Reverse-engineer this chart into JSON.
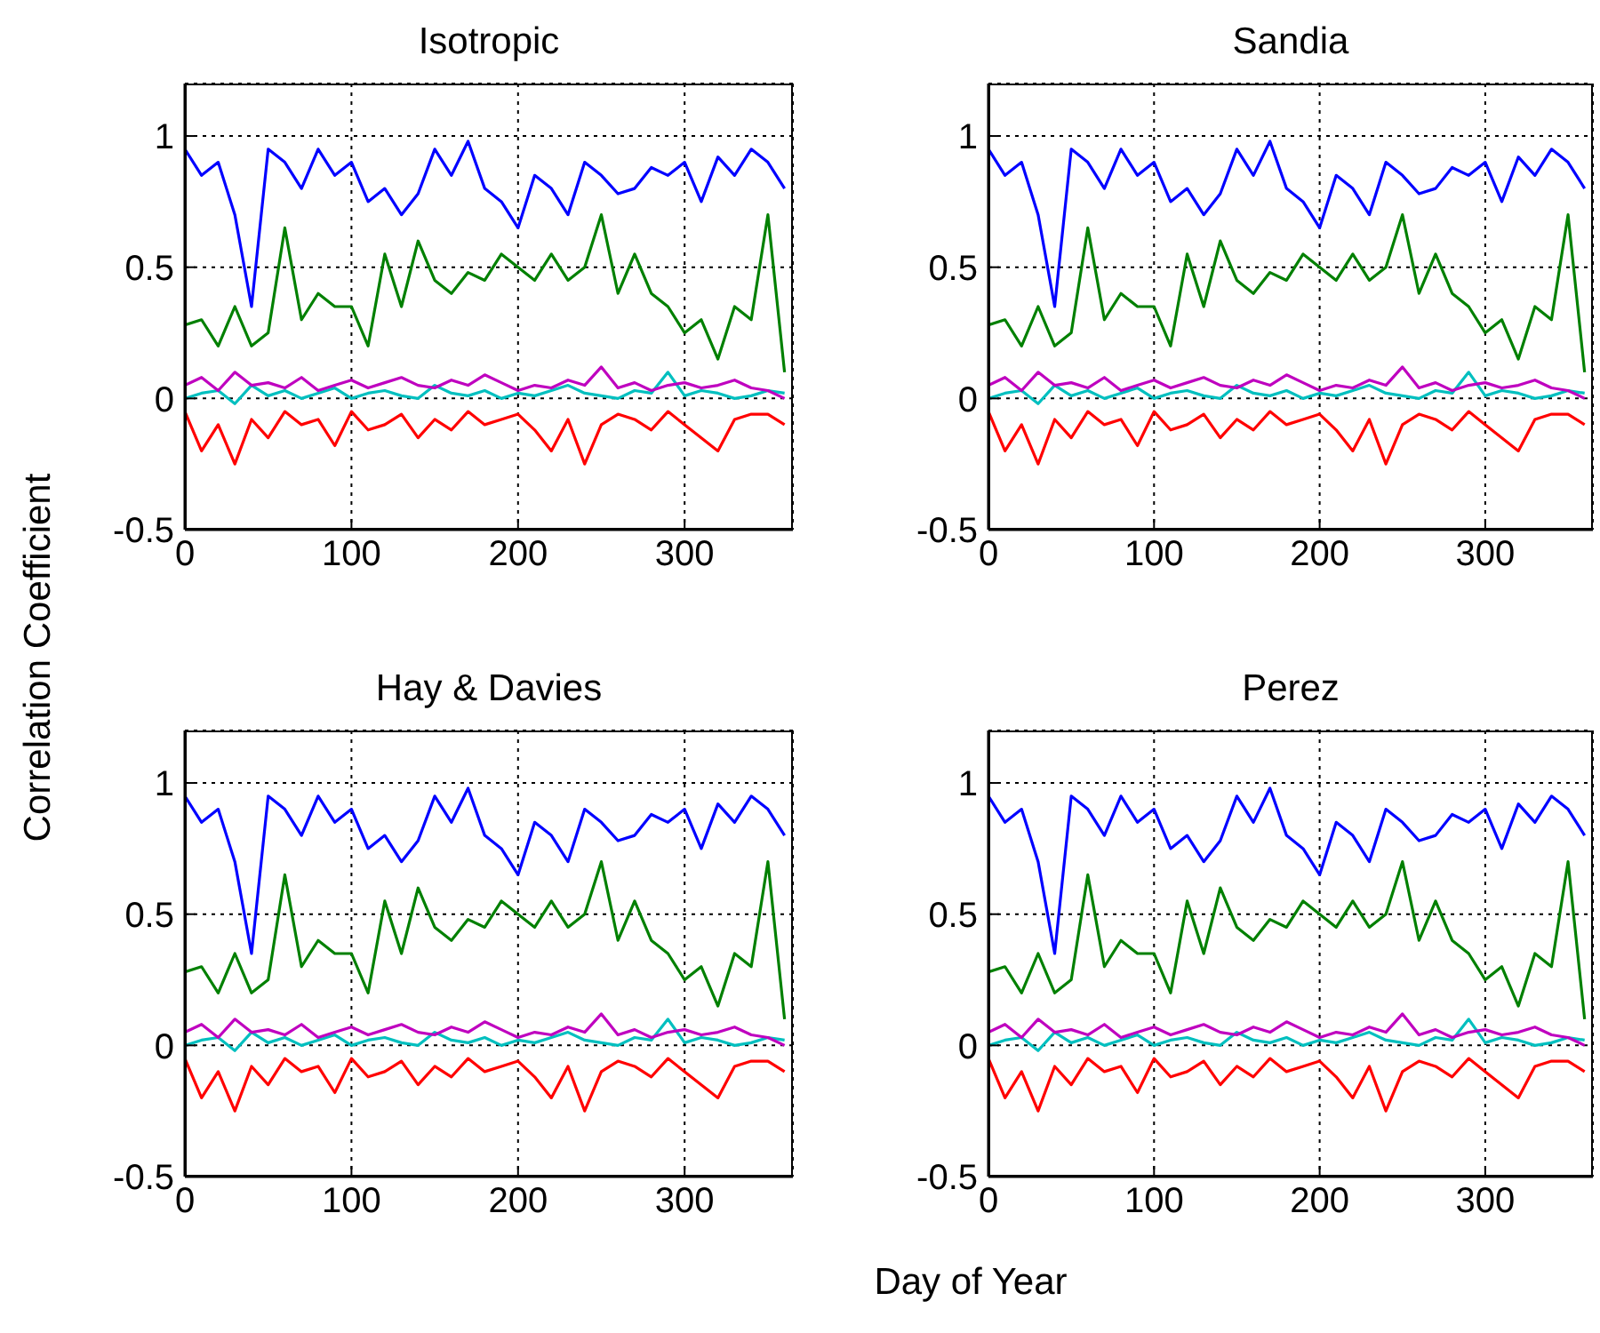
{
  "chart_data": [
    {
      "type": "line",
      "title": "Isotropic",
      "ylabel": "Correlation Coefficient",
      "x": [
        0,
        10,
        20,
        30,
        40,
        50,
        60,
        70,
        80,
        90,
        100,
        110,
        120,
        130,
        140,
        150,
        160,
        170,
        180,
        190,
        200,
        210,
        220,
        230,
        240,
        250,
        260,
        270,
        280,
        290,
        300,
        310,
        320,
        330,
        340,
        350,
        360
      ],
      "xlim": [
        0,
        365
      ],
      "xticks": [
        0,
        100,
        200,
        300
      ],
      "ylim": [
        -0.5,
        1.2
      ],
      "yticks": [
        -0.5,
        0,
        0.5,
        1
      ],
      "grid": true,
      "series": [
        {
          "color": "#0000ff",
          "values": [
            0.95,
            0.85,
            0.9,
            0.7,
            0.35,
            0.95,
            0.9,
            0.8,
            0.95,
            0.85,
            0.9,
            0.75,
            0.8,
            0.7,
            0.78,
            0.95,
            0.85,
            0.98,
            0.8,
            0.75,
            0.65,
            0.85,
            0.8,
            0.7,
            0.9,
            0.85,
            0.78,
            0.8,
            0.88,
            0.85,
            0.9,
            0.75,
            0.92,
            0.85,
            0.95,
            0.9,
            0.8
          ]
        },
        {
          "color": "#008000",
          "values": [
            0.28,
            0.3,
            0.2,
            0.35,
            0.2,
            0.25,
            0.65,
            0.3,
            0.4,
            0.35,
            0.35,
            0.2,
            0.55,
            0.35,
            0.6,
            0.45,
            0.4,
            0.48,
            0.45,
            0.55,
            0.5,
            0.45,
            0.55,
            0.45,
            0.5,
            0.7,
            0.4,
            0.55,
            0.4,
            0.35,
            0.25,
            0.3,
            0.15,
            0.35,
            0.3,
            0.7,
            0.1
          ]
        },
        {
          "color": "#00bfbf",
          "values": [
            0,
            0.02,
            0.03,
            -0.02,
            0.05,
            0.01,
            0.03,
            0,
            0.02,
            0.04,
            0,
            0.02,
            0.03,
            0.01,
            0,
            0.05,
            0.02,
            0.01,
            0.03,
            0,
            0.02,
            0.01,
            0.03,
            0.05,
            0.02,
            0.01,
            0,
            0.03,
            0.02,
            0.1,
            0.01,
            0.03,
            0.02,
            0,
            0.01,
            0.03,
            0.02
          ]
        },
        {
          "color": "#bf00bf",
          "values": [
            0.05,
            0.08,
            0.03,
            0.1,
            0.05,
            0.06,
            0.04,
            0.08,
            0.03,
            0.05,
            0.07,
            0.04,
            0.06,
            0.08,
            0.05,
            0.04,
            0.07,
            0.05,
            0.09,
            0.06,
            0.03,
            0.05,
            0.04,
            0.07,
            0.05,
            0.12,
            0.04,
            0.06,
            0.03,
            0.05,
            0.06,
            0.04,
            0.05,
            0.07,
            0.04,
            0.03,
            0
          ]
        },
        {
          "color": "#ff0000",
          "values": [
            -0.05,
            -0.2,
            -0.1,
            -0.25,
            -0.08,
            -0.15,
            -0.05,
            -0.1,
            -0.08,
            -0.18,
            -0.05,
            -0.12,
            -0.1,
            -0.06,
            -0.15,
            -0.08,
            -0.12,
            -0.05,
            -0.1,
            -0.08,
            -0.06,
            -0.12,
            -0.2,
            -0.08,
            -0.25,
            -0.1,
            -0.06,
            -0.08,
            -0.12,
            -0.05,
            -0.1,
            -0.15,
            -0.2,
            -0.08,
            -0.06,
            -0.06,
            -0.1
          ]
        }
      ]
    },
    {
      "type": "line",
      "title": "Sandia",
      "x": [
        0,
        10,
        20,
        30,
        40,
        50,
        60,
        70,
        80,
        90,
        100,
        110,
        120,
        130,
        140,
        150,
        160,
        170,
        180,
        190,
        200,
        210,
        220,
        230,
        240,
        250,
        260,
        270,
        280,
        290,
        300,
        310,
        320,
        330,
        340,
        350,
        360
      ],
      "xlim": [
        0,
        365
      ],
      "xticks": [
        0,
        100,
        200,
        300
      ],
      "ylim": [
        -0.5,
        1.2
      ],
      "yticks": [
        -0.5,
        0,
        0.5,
        1
      ],
      "grid": true,
      "series": [
        {
          "color": "#0000ff",
          "values": [
            0.95,
            0.85,
            0.9,
            0.7,
            0.35,
            0.95,
            0.9,
            0.8,
            0.95,
            0.85,
            0.9,
            0.75,
            0.8,
            0.7,
            0.78,
            0.95,
            0.85,
            0.98,
            0.8,
            0.75,
            0.65,
            0.85,
            0.8,
            0.7,
            0.9,
            0.85,
            0.78,
            0.8,
            0.88,
            0.85,
            0.9,
            0.75,
            0.92,
            0.85,
            0.95,
            0.9,
            0.8
          ]
        },
        {
          "color": "#008000",
          "values": [
            0.28,
            0.3,
            0.2,
            0.35,
            0.2,
            0.25,
            0.65,
            0.3,
            0.4,
            0.35,
            0.35,
            0.2,
            0.55,
            0.35,
            0.6,
            0.45,
            0.4,
            0.48,
            0.45,
            0.55,
            0.5,
            0.45,
            0.55,
            0.45,
            0.5,
            0.7,
            0.4,
            0.55,
            0.4,
            0.35,
            0.25,
            0.3,
            0.15,
            0.35,
            0.3,
            0.7,
            0.1
          ]
        },
        {
          "color": "#00bfbf",
          "values": [
            0,
            0.02,
            0.03,
            -0.02,
            0.05,
            0.01,
            0.03,
            0,
            0.02,
            0.04,
            0,
            0.02,
            0.03,
            0.01,
            0,
            0.05,
            0.02,
            0.01,
            0.03,
            0,
            0.02,
            0.01,
            0.03,
            0.05,
            0.02,
            0.01,
            0,
            0.03,
            0.02,
            0.1,
            0.01,
            0.03,
            0.02,
            0,
            0.01,
            0.03,
            0.02
          ]
        },
        {
          "color": "#bf00bf",
          "values": [
            0.05,
            0.08,
            0.03,
            0.1,
            0.05,
            0.06,
            0.04,
            0.08,
            0.03,
            0.05,
            0.07,
            0.04,
            0.06,
            0.08,
            0.05,
            0.04,
            0.07,
            0.05,
            0.09,
            0.06,
            0.03,
            0.05,
            0.04,
            0.07,
            0.05,
            0.12,
            0.04,
            0.06,
            0.03,
            0.05,
            0.06,
            0.04,
            0.05,
            0.07,
            0.04,
            0.03,
            0
          ]
        },
        {
          "color": "#ff0000",
          "values": [
            -0.05,
            -0.2,
            -0.1,
            -0.25,
            -0.08,
            -0.15,
            -0.05,
            -0.1,
            -0.08,
            -0.18,
            -0.05,
            -0.12,
            -0.1,
            -0.06,
            -0.15,
            -0.08,
            -0.12,
            -0.05,
            -0.1,
            -0.08,
            -0.06,
            -0.12,
            -0.2,
            -0.08,
            -0.25,
            -0.1,
            -0.06,
            -0.08,
            -0.12,
            -0.05,
            -0.1,
            -0.15,
            -0.2,
            -0.08,
            -0.06,
            -0.06,
            -0.1
          ]
        }
      ]
    },
    {
      "type": "line",
      "title": "Hay & Davies",
      "xlabel": "Day of Year",
      "x": [
        0,
        10,
        20,
        30,
        40,
        50,
        60,
        70,
        80,
        90,
        100,
        110,
        120,
        130,
        140,
        150,
        160,
        170,
        180,
        190,
        200,
        210,
        220,
        230,
        240,
        250,
        260,
        270,
        280,
        290,
        300,
        310,
        320,
        330,
        340,
        350,
        360
      ],
      "xlim": [
        0,
        365
      ],
      "xticks": [
        0,
        100,
        200,
        300
      ],
      "ylim": [
        -0.5,
        1.2
      ],
      "yticks": [
        -0.5,
        0,
        0.5,
        1
      ],
      "grid": true,
      "series": [
        {
          "color": "#0000ff",
          "values": [
            0.95,
            0.85,
            0.9,
            0.7,
            0.35,
            0.95,
            0.9,
            0.8,
            0.95,
            0.85,
            0.9,
            0.75,
            0.8,
            0.7,
            0.78,
            0.95,
            0.85,
            0.98,
            0.8,
            0.75,
            0.65,
            0.85,
            0.8,
            0.7,
            0.9,
            0.85,
            0.78,
            0.8,
            0.88,
            0.85,
            0.9,
            0.75,
            0.92,
            0.85,
            0.95,
            0.9,
            0.8
          ]
        },
        {
          "color": "#008000",
          "values": [
            0.28,
            0.3,
            0.2,
            0.35,
            0.2,
            0.25,
            0.65,
            0.3,
            0.4,
            0.35,
            0.35,
            0.2,
            0.55,
            0.35,
            0.6,
            0.45,
            0.4,
            0.48,
            0.45,
            0.55,
            0.5,
            0.45,
            0.55,
            0.45,
            0.5,
            0.7,
            0.4,
            0.55,
            0.4,
            0.35,
            0.25,
            0.3,
            0.15,
            0.35,
            0.3,
            0.7,
            0.1
          ]
        },
        {
          "color": "#00bfbf",
          "values": [
            0,
            0.02,
            0.03,
            -0.02,
            0.05,
            0.01,
            0.03,
            0,
            0.02,
            0.04,
            0,
            0.02,
            0.03,
            0.01,
            0,
            0.05,
            0.02,
            0.01,
            0.03,
            0,
            0.02,
            0.01,
            0.03,
            0.05,
            0.02,
            0.01,
            0,
            0.03,
            0.02,
            0.1,
            0.01,
            0.03,
            0.02,
            0,
            0.01,
            0.03,
            0.02
          ]
        },
        {
          "color": "#bf00bf",
          "values": [
            0.05,
            0.08,
            0.03,
            0.1,
            0.05,
            0.06,
            0.04,
            0.08,
            0.03,
            0.05,
            0.07,
            0.04,
            0.06,
            0.08,
            0.05,
            0.04,
            0.07,
            0.05,
            0.09,
            0.06,
            0.03,
            0.05,
            0.04,
            0.07,
            0.05,
            0.12,
            0.04,
            0.06,
            0.03,
            0.05,
            0.06,
            0.04,
            0.05,
            0.07,
            0.04,
            0.03,
            0
          ]
        },
        {
          "color": "#ff0000",
          "values": [
            -0.05,
            -0.2,
            -0.1,
            -0.25,
            -0.08,
            -0.15,
            -0.05,
            -0.1,
            -0.08,
            -0.18,
            -0.05,
            -0.12,
            -0.1,
            -0.06,
            -0.15,
            -0.08,
            -0.12,
            -0.05,
            -0.1,
            -0.08,
            -0.06,
            -0.12,
            -0.2,
            -0.08,
            -0.25,
            -0.1,
            -0.06,
            -0.08,
            -0.12,
            -0.05,
            -0.1,
            -0.15,
            -0.2,
            -0.08,
            -0.06,
            -0.06,
            -0.1
          ]
        }
      ]
    },
    {
      "type": "line",
      "title": "Perez",
      "x": [
        0,
        10,
        20,
        30,
        40,
        50,
        60,
        70,
        80,
        90,
        100,
        110,
        120,
        130,
        140,
        150,
        160,
        170,
        180,
        190,
        200,
        210,
        220,
        230,
        240,
        250,
        260,
        270,
        280,
        290,
        300,
        310,
        320,
        330,
        340,
        350,
        360
      ],
      "xlim": [
        0,
        365
      ],
      "xticks": [
        0,
        100,
        200,
        300
      ],
      "ylim": [
        -0.5,
        1.2
      ],
      "yticks": [
        -0.5,
        0,
        0.5,
        1
      ],
      "grid": true,
      "series": [
        {
          "color": "#0000ff",
          "values": [
            0.95,
            0.85,
            0.9,
            0.7,
            0.35,
            0.95,
            0.9,
            0.8,
            0.95,
            0.85,
            0.9,
            0.75,
            0.8,
            0.7,
            0.78,
            0.95,
            0.85,
            0.98,
            0.8,
            0.75,
            0.65,
            0.85,
            0.8,
            0.7,
            0.9,
            0.85,
            0.78,
            0.8,
            0.88,
            0.85,
            0.9,
            0.75,
            0.92,
            0.85,
            0.95,
            0.9,
            0.8
          ]
        },
        {
          "color": "#008000",
          "values": [
            0.28,
            0.3,
            0.2,
            0.35,
            0.2,
            0.25,
            0.65,
            0.3,
            0.4,
            0.35,
            0.35,
            0.2,
            0.55,
            0.35,
            0.6,
            0.45,
            0.4,
            0.48,
            0.45,
            0.55,
            0.5,
            0.45,
            0.55,
            0.45,
            0.5,
            0.7,
            0.4,
            0.55,
            0.4,
            0.35,
            0.25,
            0.3,
            0.15,
            0.35,
            0.3,
            0.7,
            0.1
          ]
        },
        {
          "color": "#00bfbf",
          "values": [
            0,
            0.02,
            0.03,
            -0.02,
            0.05,
            0.01,
            0.03,
            0,
            0.02,
            0.04,
            0,
            0.02,
            0.03,
            0.01,
            0,
            0.05,
            0.02,
            0.01,
            0.03,
            0,
            0.02,
            0.01,
            0.03,
            0.05,
            0.02,
            0.01,
            0,
            0.03,
            0.02,
            0.1,
            0.01,
            0.03,
            0.02,
            0,
            0.01,
            0.03,
            0.02
          ]
        },
        {
          "color": "#bf00bf",
          "values": [
            0.05,
            0.08,
            0.03,
            0.1,
            0.05,
            0.06,
            0.04,
            0.08,
            0.03,
            0.05,
            0.07,
            0.04,
            0.06,
            0.08,
            0.05,
            0.04,
            0.07,
            0.05,
            0.09,
            0.06,
            0.03,
            0.05,
            0.04,
            0.07,
            0.05,
            0.12,
            0.04,
            0.06,
            0.03,
            0.05,
            0.06,
            0.04,
            0.05,
            0.07,
            0.04,
            0.03,
            0
          ]
        },
        {
          "color": "#ff0000",
          "values": [
            -0.05,
            -0.2,
            -0.1,
            -0.25,
            -0.08,
            -0.15,
            -0.05,
            -0.1,
            -0.08,
            -0.18,
            -0.05,
            -0.12,
            -0.1,
            -0.06,
            -0.15,
            -0.08,
            -0.12,
            -0.05,
            -0.1,
            -0.08,
            -0.06,
            -0.12,
            -0.2,
            -0.08,
            -0.25,
            -0.1,
            -0.06,
            -0.08,
            -0.12,
            -0.05,
            -0.1,
            -0.15,
            -0.2,
            -0.08,
            -0.06,
            -0.06,
            -0.1
          ]
        }
      ]
    }
  ]
}
